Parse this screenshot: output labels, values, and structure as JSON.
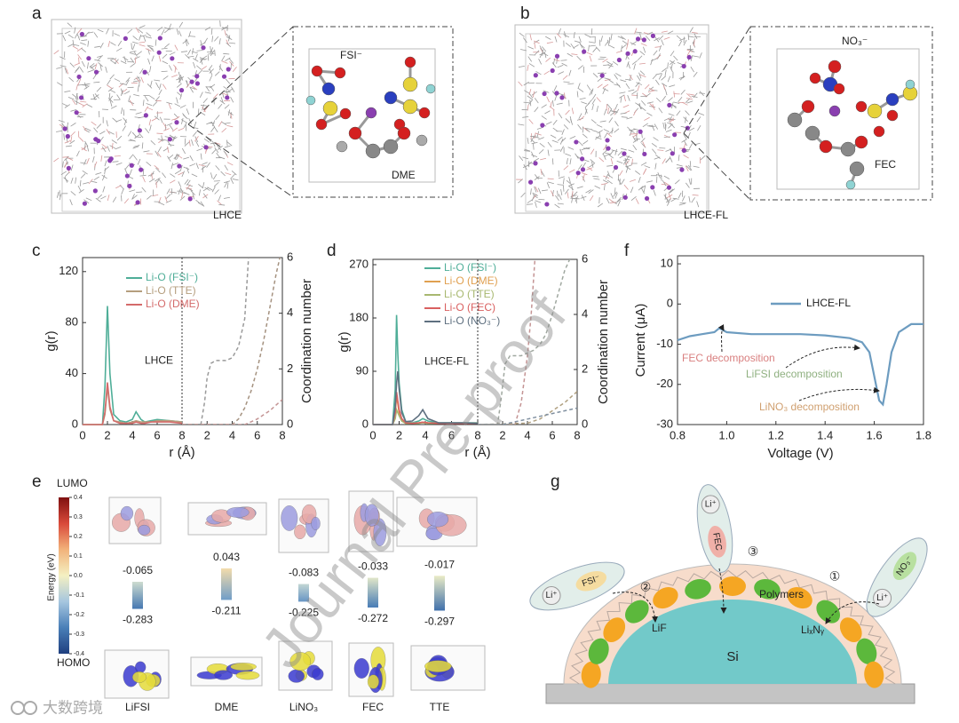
{
  "panels": {
    "a": {
      "letter": "a",
      "label": "LHCE",
      "ion": "FSI⁻",
      "solvent": "DME"
    },
    "b": {
      "letter": "b",
      "label": "LHCE-FL",
      "ion": "NO₃⁻",
      "solvent": "FEC"
    },
    "c": {
      "letter": "c",
      "type": "line",
      "ylabel": "g(r)",
      "y2label": "Coordination number",
      "xlabel": "r (Å)",
      "annotation": "LHCE",
      "xlim": [
        0,
        8
      ],
      "xticks": [
        0,
        2,
        4,
        6,
        8
      ],
      "x2lim": [
        0,
        8
      ],
      "x2ticks": [
        2,
        4,
        6,
        8
      ],
      "ylim": [
        0,
        131
      ],
      "yticks": [
        0,
        40,
        80,
        120
      ],
      "y2lim": [
        0,
        6
      ],
      "y2ticks": [
        0,
        2,
        4,
        6
      ],
      "x": [
        0,
        1,
        1.6,
        1.8,
        2.0,
        2.2,
        2.5,
        3,
        3.5,
        4,
        4.3,
        4.7,
        5,
        5.5,
        6,
        7,
        8
      ],
      "series": [
        {
          "name": "Li-O (FSI⁻)",
          "color": "#4fae98",
          "values": [
            0,
            0,
            0,
            30,
            93,
            40,
            8,
            3,
            2,
            4,
            10,
            4,
            2,
            3,
            4,
            3,
            2
          ]
        },
        {
          "name": "Li-O (TTE)",
          "color": "#b59e7e",
          "values": [
            0,
            0,
            0,
            8,
            30,
            12,
            3,
            2,
            1,
            2,
            3,
            2,
            2,
            2,
            3,
            3,
            2
          ]
        },
        {
          "name": "Li-O (DME)",
          "color": "#d46a6a",
          "values": [
            0,
            0,
            0,
            10,
            33,
            14,
            3,
            1,
            1,
            1,
            2,
            1,
            1,
            2,
            2,
            2,
            1
          ]
        }
      ],
      "coordination": [
        {
          "color": "#9a9a9a",
          "x": [
            0,
            1.5,
            1.8,
            2,
            2.3,
            2.7,
            3.5,
            4,
            4.5,
            5,
            5.3
          ],
          "values": [
            0,
            0,
            0.8,
            1.7,
            2.2,
            2.3,
            2.3,
            2.4,
            2.8,
            3.8,
            6
          ]
        },
        {
          "color": "#a59280",
          "x": [
            0,
            4,
            4.5,
            5,
            5.5,
            6,
            6.5,
            7,
            7.5,
            7.8
          ],
          "values": [
            0,
            0,
            0.2,
            0.6,
            1.2,
            2,
            3,
            4.2,
            5.4,
            6
          ]
        },
        {
          "color": "#c49494",
          "x": [
            0,
            5,
            5.5,
            6,
            6.5,
            7,
            7.5,
            8
          ],
          "values": [
            0,
            0,
            0.1,
            0.2,
            0.35,
            0.5,
            0.7,
            0.9
          ]
        }
      ]
    },
    "d": {
      "letter": "d",
      "type": "line",
      "ylabel": "g(r)",
      "y2label": "Coordination number",
      "xlabel": "r (Å)",
      "annotation": "LHCE-FL",
      "xlim": [
        0,
        8
      ],
      "xticks": [
        0,
        2,
        4,
        6,
        8
      ],
      "x2lim": [
        0,
        8
      ],
      "x2ticks": [
        2,
        4,
        6,
        8
      ],
      "ylim": [
        0,
        279
      ],
      "yticks": [
        0,
        90,
        180,
        270
      ],
      "y2lim": [
        0,
        6
      ],
      "y2ticks": [
        0,
        2,
        4,
        6
      ],
      "x": [
        0,
        1,
        1.5,
        1.7,
        1.8,
        1.9,
        2.0,
        2.2,
        2.5,
        3,
        3.5,
        3.8,
        4.2,
        5,
        6,
        7,
        8
      ],
      "series": [
        {
          "name": "Li-O (FSI⁻)",
          "color": "#4fae98",
          "values": [
            0,
            0,
            0,
            60,
            185,
            120,
            70,
            25,
            5,
            3,
            6,
            10,
            6,
            3,
            3,
            3,
            3
          ]
        },
        {
          "name": "Li-O (DME)",
          "color": "#e0a050",
          "values": [
            0,
            0,
            0,
            20,
            50,
            35,
            20,
            8,
            3,
            2,
            3,
            4,
            3,
            2,
            2,
            2,
            2
          ]
        },
        {
          "name": "Li-O (TTE)",
          "color": "#a8b870",
          "values": [
            0,
            0,
            0,
            10,
            25,
            20,
            15,
            6,
            2,
            2,
            2,
            3,
            2,
            2,
            2,
            2,
            2
          ]
        },
        {
          "name": "Li-O (FEC)",
          "color": "#d96060",
          "values": [
            0,
            0,
            0,
            20,
            55,
            40,
            25,
            10,
            3,
            2,
            3,
            4,
            3,
            2,
            2,
            2,
            2
          ]
        },
        {
          "name": "Li-O (NO₃⁻)",
          "color": "#5f7080",
          "values": [
            0,
            0,
            0,
            30,
            70,
            90,
            60,
            20,
            5,
            6,
            15,
            25,
            10,
            3,
            3,
            3,
            2
          ]
        }
      ],
      "coordination": [
        {
          "color": "#a0a8a0",
          "x": [
            0,
            1.6,
            1.9,
            2.2,
            2.6,
            3,
            3.5,
            4,
            4.5,
            5,
            5.5,
            6,
            6.5,
            7,
            7.4
          ],
          "values": [
            0,
            0,
            1,
            2.2,
            2.5,
            2.5,
            2.5,
            2.6,
            2.7,
            2.9,
            3.3,
            4,
            4.8,
            5.6,
            6
          ]
        },
        {
          "color": "#c49494",
          "x": [
            0,
            3,
            3.5,
            4,
            4.3,
            4.6
          ],
          "values": [
            0,
            0,
            0.8,
            2.5,
            4,
            6
          ]
        },
        {
          "color": "#b0a080",
          "x": [
            0,
            4,
            5,
            6,
            7,
            8
          ],
          "values": [
            0,
            0.05,
            0.2,
            0.5,
            0.8,
            1.2
          ]
        },
        {
          "color": "#8090a0",
          "x": [
            0,
            2,
            3,
            4,
            5,
            6,
            7,
            8
          ],
          "values": [
            0,
            0,
            0.1,
            0.2,
            0.3,
            0.4,
            0.5,
            0.6
          ]
        }
      ]
    },
    "e": {
      "letter": "e",
      "lumo_label": "LUMO",
      "homo_label": "HOMO",
      "colorbar_label": "Energy (eV)",
      "colorbar_lim": [
        -0.4,
        0.4
      ],
      "colorbar_ticks": [
        0.4,
        0.3,
        0.2,
        0.1,
        {
          "value": 0,
          "label": "0.0"
        },
        -0.1,
        -0.2,
        -0.3,
        -0.4
      ],
      "colormap": [
        "#1f3f7f",
        "#4a7fb8",
        "#a6c6df",
        "#f4f0c2",
        "#f2b27a",
        "#d9493a",
        "#7f1010"
      ],
      "molecules": [
        {
          "name": "LiFSI",
          "lumo": -0.065,
          "homo": -0.283
        },
        {
          "name": "DME",
          "lumo": 0.043,
          "homo": -0.211
        },
        {
          "name": "LiNO₃",
          "lumo": -0.083,
          "homo": -0.225
        },
        {
          "name": "FEC",
          "lumo": -0.033,
          "homo": -0.272
        },
        {
          "name": "TTE",
          "lumo": -0.017,
          "homo": -0.297
        }
      ]
    },
    "f": {
      "letter": "f",
      "type": "line",
      "xlabel": "Voltage (V)",
      "ylabel": "Current (μA)",
      "color": "#6d9cc0",
      "legend": "LHCE-FL",
      "xlim": [
        0.8,
        1.8
      ],
      "xticks": [
        0.8,
        {
          "value": 1,
          "label": "1.0"
        },
        1.2,
        1.4,
        1.6,
        1.8
      ],
      "ylim": [
        -30,
        12
      ],
      "yticks": [
        -30,
        -20,
        -10,
        0,
        10
      ],
      "x": [
        0.8,
        0.85,
        0.9,
        0.95,
        0.97,
        1.0,
        1.1,
        1.2,
        1.3,
        1.4,
        1.5,
        1.55,
        1.58,
        1.6,
        1.62,
        1.635,
        1.65,
        1.67,
        1.7,
        1.75,
        1.8
      ],
      "values": [
        -9,
        -8,
        -7.5,
        -7,
        -6,
        -7,
        -7.5,
        -7.5,
        -7.5,
        -7.8,
        -8.5,
        -9.5,
        -12,
        -18,
        -24,
        -25,
        -20,
        -12,
        -7,
        -5,
        -5
      ],
      "annotations": [
        {
          "text": "FEC decomposition",
          "color": "#d98080"
        },
        {
          "text": "LiFSI decomposition",
          "color": "#8fb080"
        },
        {
          "text": "LiNO₃ decomposition",
          "color": "#d0a070"
        }
      ]
    },
    "g": {
      "letter": "g",
      "polymers": "Polymers",
      "lif": "LiF",
      "lixny": "LiₓNᵧ",
      "si": "Si",
      "capsules": [
        {
          "cation": "Li⁺",
          "anion": "FSI⁻",
          "step": "②"
        },
        {
          "cation": "Li⁺",
          "anion": "FEC",
          "step": "③"
        },
        {
          "cation": "Li⁺",
          "anion": "NO₃⁻",
          "step": "①"
        }
      ]
    }
  },
  "watermark": "Journal Pre-proof",
  "logo": "大数跨境"
}
